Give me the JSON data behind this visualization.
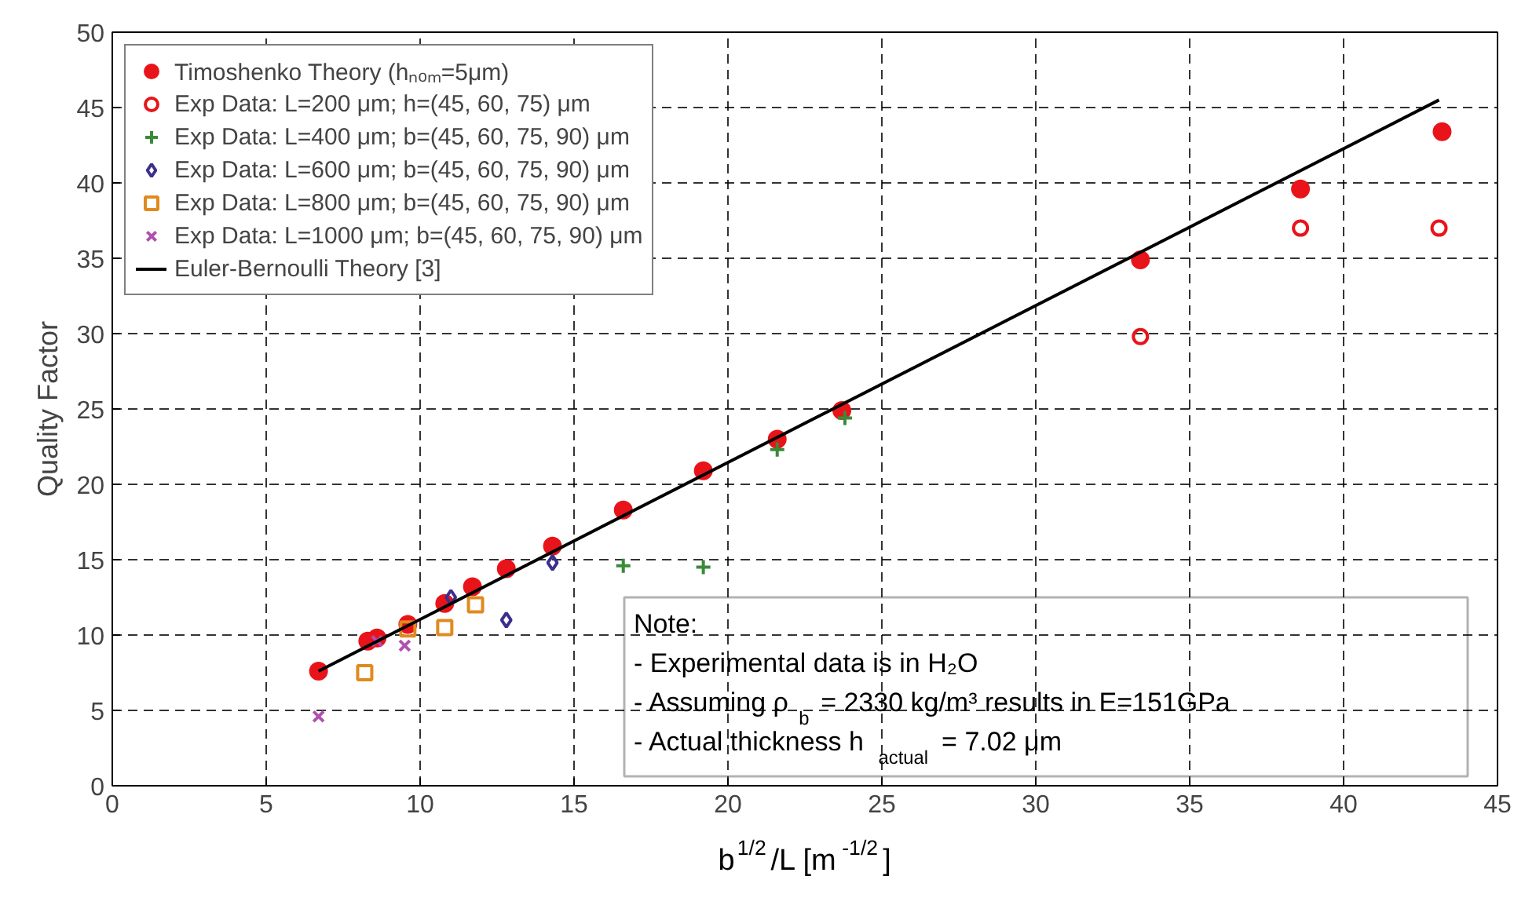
{
  "chart_data": {
    "type": "scatter",
    "xlabel": "b$^{1/2}$/L [m$^{-1/2}$]",
    "ylabel": "Quality Factor",
    "xlim": [
      0,
      45
    ],
    "ylim": [
      0,
      50
    ],
    "xticks": [
      0,
      5,
      10,
      15,
      20,
      25,
      30,
      35,
      40,
      45
    ],
    "yticks": [
      0,
      5,
      10,
      15,
      20,
      25,
      30,
      35,
      40,
      45,
      50
    ],
    "grid": true,
    "legend": "top left",
    "series": [
      {
        "name": "Timoshenko Theory (hₙₒₘ=5μm)",
        "type": "scatter",
        "marker": "circle",
        "color": "#e8141a",
        "x": [
          6.7,
          8.3,
          8.6,
          9.6,
          10.8,
          11.7,
          12.8,
          14.3,
          16.6,
          19.2,
          21.6,
          23.7,
          33.4,
          38.6,
          43.2
        ],
        "values": [
          7.6,
          9.6,
          9.8,
          10.7,
          12.1,
          13.2,
          14.4,
          15.9,
          18.3,
          20.9,
          23.0,
          24.9,
          34.9,
          39.6,
          43.4
        ]
      },
      {
        "name": "Exp Data: L=200 μm; h=(45, 60, 75) μm",
        "type": "scatter",
        "marker": "circle_open",
        "color": "#e8141a",
        "x": [
          33.4,
          38.6,
          43.1
        ],
        "values": [
          29.8,
          37.0,
          37.0
        ]
      },
      {
        "name": "Exp Data: L=400 μm; b=(45, 60, 75, 90) μm",
        "type": "scatter",
        "marker": "cross",
        "color": "#3a8a3a",
        "x": [
          16.6,
          19.2,
          21.6,
          23.8
        ],
        "values": [
          14.6,
          14.5,
          22.3,
          24.4
        ]
      },
      {
        "name": "Exp Data: L=600 μm; b=(45, 60, 75, 90) μm",
        "type": "scatter",
        "marker": "diamond",
        "color": "#3a2f8f",
        "x": [
          11.0,
          12.8,
          14.3
        ],
        "values": [
          12.5,
          11.0,
          14.8
        ]
      },
      {
        "name": "Exp Data: L=800 μm; b=(45, 60, 75, 90) μm",
        "type": "scatter",
        "marker": "square",
        "color": "#e08a1e",
        "x": [
          8.2,
          9.6,
          10.8,
          11.8
        ],
        "values": [
          7.5,
          10.4,
          10.5,
          12.0
        ]
      },
      {
        "name": "Exp Data: L=1000 μm; b=(45, 60, 75, 90) μm",
        "type": "scatter",
        "marker": "x",
        "color": "#b050b0",
        "x": [
          6.7,
          8.6,
          9.5
        ],
        "values": [
          4.6,
          9.6,
          9.3
        ]
      },
      {
        "name": "Euler-Bernoulli Theory [3]",
        "type": "line",
        "marker": "none",
        "line_style": "solid",
        "color": "#000000",
        "x": [
          6.7,
          43.1
        ],
        "values": [
          7.6,
          45.5
        ]
      }
    ],
    "annotations": [
      "Note:",
      "- Experimental data is in H₂O",
      "- Assuming ρ$_{b}$ = 2330 kg/m³ results in E=151GPa",
      "- Actual thickness h$_{actual}$ = 7.02 μm"
    ]
  }
}
